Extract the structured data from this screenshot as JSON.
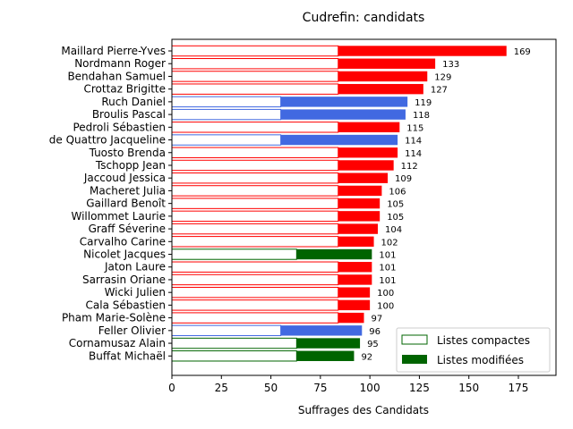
{
  "chart_data": {
    "type": "bar",
    "orientation": "horizontal",
    "title": "Cudrefin: candidats",
    "xlabel": "Suffrages des Candidats",
    "ylabel": "",
    "xlim": [
      0,
      194
    ],
    "xticks": [
      0,
      25,
      50,
      75,
      100,
      125,
      150,
      175
    ],
    "grid": false,
    "legend_position": "bottom-right",
    "legend": [
      {
        "label": "Listes compactes",
        "style": "outline",
        "color": "#006400"
      },
      {
        "label": "Listes modifiées",
        "style": "filled",
        "color": "#006400"
      }
    ],
    "categories": [
      "Maillard Pierre-Yves",
      "Nordmann Roger",
      "Bendahan Samuel",
      "Crottaz Brigitte",
      "Ruch Daniel",
      "Broulis Pascal",
      "Pedroli Sébastien",
      "de Quattro Jacqueline",
      "Tuosto Brenda",
      "Tschopp Jean",
      "Jaccoud Jessica",
      "Macheret Julia",
      "Gaillard Benoît",
      "Willommet Laurie",
      "Graff Séverine",
      "Carvalho Carine",
      "Nicolet Jacques",
      "Jaton Laure",
      "Sarrasin Oriane",
      "Wicki Julien",
      "Cala Sébastien",
      "Pham Marie-Solène",
      "Feller Olivier",
      "Cornamusaz Alain",
      "Buffat Michaël"
    ],
    "values": [
      169,
      133,
      129,
      127,
      119,
      118,
      115,
      114,
      114,
      112,
      109,
      106,
      105,
      105,
      104,
      102,
      101,
      101,
      101,
      100,
      100,
      97,
      96,
      95,
      92
    ],
    "compact_values": [
      84,
      84,
      84,
      84,
      55,
      55,
      84,
      55,
      84,
      84,
      84,
      84,
      84,
      84,
      84,
      84,
      63,
      84,
      84,
      84,
      84,
      84,
      55,
      63,
      63
    ],
    "parties": [
      "red",
      "red",
      "red",
      "red",
      "blue",
      "blue",
      "red",
      "blue",
      "red",
      "red",
      "red",
      "red",
      "red",
      "red",
      "red",
      "red",
      "green",
      "red",
      "red",
      "red",
      "red",
      "red",
      "blue",
      "green",
      "green"
    ],
    "colors": {
      "red": "#ff0000",
      "blue": "#4169e1",
      "green": "#006400"
    }
  }
}
